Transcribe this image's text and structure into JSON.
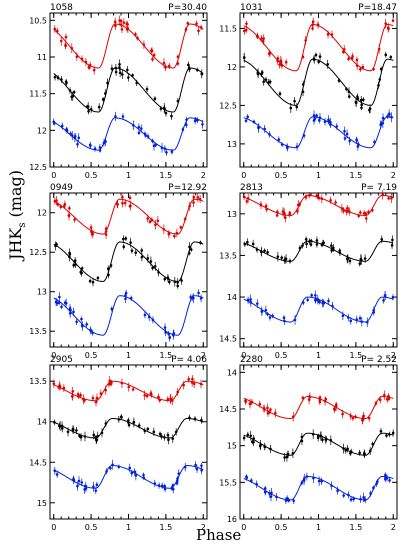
{
  "figure": {
    "ylabel": "JHK",
    "ylabel_sub": "s",
    "ylabel_unit": " (mag)",
    "xlabel": "Phase"
  },
  "chart_data": [
    {
      "type": "scatter",
      "id": "1058",
      "period_label": "P=30.40",
      "xlim": [
        -0.05,
        2.05
      ],
      "ylim": [
        10.4,
        12.5
      ],
      "ylim_inverted": true,
      "xticks": [
        0,
        0.5,
        1,
        1.5,
        2
      ],
      "xtick_labels": [
        "0",
        "0.5",
        "1",
        "1.5",
        "2"
      ],
      "yticks": [
        10.5,
        11,
        11.5,
        12,
        12.5
      ],
      "ytick_labels": [
        "10.5",
        "11",
        "11.5",
        "12",
        "12.5"
      ],
      "series": [
        {
          "color": "#e00000",
          "mean": 10.85,
          "amp": 0.3,
          "min_phase": 0.82
        },
        {
          "color": "#000000",
          "mean": 11.45,
          "amp": 0.3,
          "min_phase": 0.82
        },
        {
          "color": "#0020e0",
          "mean": 12.05,
          "amp": 0.22,
          "min_phase": 0.82
        }
      ]
    },
    {
      "type": "scatter",
      "id": "1031",
      "period_label": "P=18.47",
      "xlim": [
        -0.05,
        2.05
      ],
      "ylim": [
        11.3,
        13.3
      ],
      "ylim_inverted": true,
      "xticks": [
        0,
        0.5,
        1,
        1.5,
        2
      ],
      "xtick_labels": [
        "0",
        "0.5",
        "1",
        "1.5",
        "2"
      ],
      "yticks": [
        11.5,
        12,
        12.5,
        13
      ],
      "ytick_labels": [
        "11.5",
        "12",
        "12.5",
        "13"
      ],
      "series": [
        {
          "color": "#e00000",
          "mean": 11.75,
          "amp": 0.3,
          "min_phase": 0.92
        },
        {
          "color": "#000000",
          "mean": 12.2,
          "amp": 0.3,
          "min_phase": 0.92
        },
        {
          "color": "#0020e0",
          "mean": 12.85,
          "amp": 0.2,
          "min_phase": 0.92
        }
      ]
    },
    {
      "type": "scatter",
      "id": "0949",
      "period_label": "P=12.92",
      "xlim": [
        -0.05,
        2.05
      ],
      "ylim": [
        11.75,
        13.7
      ],
      "ylim_inverted": true,
      "xticks": [
        0,
        0.5,
        1,
        1.5,
        2
      ],
      "xtick_labels": [
        "0",
        "0.5",
        "1",
        "1.5",
        "2"
      ],
      "yticks": [
        12,
        12.5,
        13,
        13.5
      ],
      "ytick_labels": [
        "12",
        "12.5",
        "13",
        "13.5"
      ],
      "series": [
        {
          "color": "#e00000",
          "mean": 12.05,
          "amp": 0.22,
          "min_phase": 0.88
        },
        {
          "color": "#000000",
          "mean": 12.62,
          "amp": 0.25,
          "min_phase": 0.88
        },
        {
          "color": "#0020e0",
          "mean": 13.3,
          "amp": 0.25,
          "min_phase": 0.88
        }
      ]
    },
    {
      "type": "scatter",
      "id": "2813",
      "period_label": "P= 7.19",
      "xlim": [
        -0.05,
        2.05
      ],
      "ylim": [
        12.75,
        14.6
      ],
      "ylim_inverted": true,
      "xticks": [
        0,
        0.5,
        1,
        1.5,
        2
      ],
      "xtick_labels": [
        "0",
        "0.5",
        "1",
        "1.5",
        "2"
      ],
      "yticks": [
        13,
        13.5,
        14,
        14.5
      ],
      "ytick_labels": [
        "13",
        "13.5",
        "14",
        "14.5"
      ],
      "series": [
        {
          "color": "#e00000",
          "mean": 12.9,
          "amp": 0.12,
          "min_phase": 0.85
        },
        {
          "color": "#000000",
          "mean": 13.45,
          "amp": 0.12,
          "min_phase": 0.85
        },
        {
          "color": "#0020e0",
          "mean": 14.15,
          "amp": 0.15,
          "min_phase": 0.85
        }
      ]
    },
    {
      "type": "scatter",
      "id": "2905",
      "period_label": "P= 4.06",
      "xlim": [
        -0.05,
        2.05
      ],
      "ylim": [
        13.3,
        15.2
      ],
      "ylim_inverted": true,
      "xticks": [
        0,
        0.5,
        1,
        1.5,
        2
      ],
      "xtick_labels": [
        "0",
        "0.5",
        "1",
        "1.5",
        "2"
      ],
      "yticks": [
        13.5,
        14,
        14.5,
        15
      ],
      "ytick_labels": [
        "13.5",
        "14",
        "14.5",
        "15"
      ],
      "series": [
        {
          "color": "#e00000",
          "mean": 13.62,
          "amp": 0.12,
          "min_phase": 0.78
        },
        {
          "color": "#000000",
          "mean": 14.08,
          "amp": 0.12,
          "min_phase": 0.78
        },
        {
          "color": "#0020e0",
          "mean": 14.68,
          "amp": 0.14,
          "min_phase": 0.78
        }
      ]
    },
    {
      "type": "scatter",
      "id": "2280",
      "period_label": "P= 2.52",
      "xlim": [
        -0.05,
        2.05
      ],
      "ylim": [
        13.9,
        16.0
      ],
      "ylim_inverted": true,
      "xticks": [
        0,
        0.5,
        1,
        1.5,
        2
      ],
      "xtick_labels": [
        "0",
        "0.5",
        "1",
        "1.5",
        "2"
      ],
      "yticks": [
        14,
        14.5,
        15,
        15.5,
        16
      ],
      "ytick_labels": [
        "14",
        "14.5",
        "15",
        "15.5",
        "16"
      ],
      "series": [
        {
          "color": "#e00000",
          "mean": 14.48,
          "amp": 0.15,
          "min_phase": 0.85
        },
        {
          "color": "#000000",
          "mean": 14.98,
          "amp": 0.15,
          "min_phase": 0.85
        },
        {
          "color": "#0020e0",
          "mean": 15.58,
          "amp": 0.16,
          "min_phase": 0.85
        }
      ]
    }
  ]
}
